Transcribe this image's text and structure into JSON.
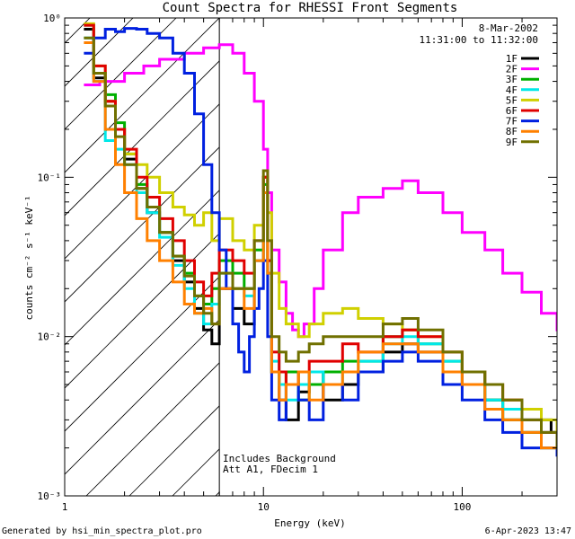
{
  "chart_data": {
    "type": "line",
    "title": "Count Spectra for RHESSI Front Segments",
    "xlabel": "Energy (keV)",
    "ylabel": "counts cm⁻² s⁻¹ keV⁻¹",
    "xscale": "log",
    "yscale": "log",
    "xlim": [
      1,
      300
    ],
    "ylim": [
      0.001,
      1
    ],
    "x_ticks": [
      {
        "value": 1,
        "label": "1"
      },
      {
        "value": 10,
        "label": "10"
      },
      {
        "value": 100,
        "label": "100"
      }
    ],
    "y_ticks": [
      {
        "value": 1,
        "label": "10⁰"
      },
      {
        "value": 0.1,
        "label": "10⁻¹"
      },
      {
        "value": 0.01,
        "label": "10⁻²"
      },
      {
        "value": 0.001,
        "label": "10⁻³"
      }
    ],
    "date": "8-Mar-2002",
    "time_range": "11:31:00 to 11:32:00",
    "annotation_lines": [
      "Includes Background",
      "Att A1, FDecim 1"
    ],
    "hatched_region_max_energy_keV": 6,
    "series": [
      {
        "name": "1F",
        "color": "#000000",
        "x": [
          1.25,
          1.4,
          1.6,
          1.8,
          2.0,
          2.3,
          2.6,
          3.0,
          3.5,
          4.0,
          4.5,
          5.0,
          5.5,
          6.0,
          7,
          8,
          9,
          10,
          10.5,
          11,
          12,
          13,
          15,
          17,
          20,
          25,
          30,
          40,
          50,
          60,
          80,
          100,
          130,
          160,
          200,
          250,
          280,
          300
        ],
        "y": [
          0.85,
          0.42,
          0.3,
          0.2,
          0.13,
          0.085,
          0.06,
          0.045,
          0.03,
          0.022,
          0.015,
          0.011,
          0.009,
          0.02,
          0.015,
          0.012,
          0.03,
          0.1,
          0.03,
          0.006,
          0.004,
          0.003,
          0.0045,
          0.006,
          0.004,
          0.005,
          0.006,
          0.008,
          0.009,
          0.008,
          0.006,
          0.005,
          0.004,
          0.003,
          0.0025,
          0.003,
          0.0025,
          0.002
        ]
      },
      {
        "name": "2F",
        "color": "#ff00ff",
        "x": [
          1.25,
          1.5,
          2.0,
          2.5,
          3.0,
          4.0,
          5.0,
          6.0,
          7.0,
          8.0,
          9.0,
          10.0,
          10.5,
          11,
          12,
          13,
          14,
          15,
          16,
          18,
          20,
          25,
          30,
          40,
          50,
          60,
          80,
          100,
          130,
          160,
          200,
          250,
          300
        ],
        "y": [
          0.38,
          0.4,
          0.45,
          0.5,
          0.55,
          0.6,
          0.65,
          0.68,
          0.6,
          0.45,
          0.3,
          0.15,
          0.08,
          0.035,
          0.022,
          0.014,
          0.011,
          0.01,
          0.012,
          0.02,
          0.035,
          0.06,
          0.075,
          0.085,
          0.095,
          0.08,
          0.06,
          0.045,
          0.035,
          0.025,
          0.019,
          0.014,
          0.011
        ]
      },
      {
        "name": "3F",
        "color": "#00b000",
        "x": [
          1.25,
          1.4,
          1.6,
          1.8,
          2.0,
          2.3,
          2.6,
          3.0,
          3.5,
          4.0,
          4.5,
          5.0,
          5.5,
          6.0,
          7,
          8,
          9,
          10,
          10.5,
          11,
          12,
          13,
          15,
          17,
          20,
          25,
          30,
          40,
          50,
          60,
          80,
          100,
          130,
          160,
          200,
          250,
          300
        ],
        "y": [
          0.9,
          0.45,
          0.33,
          0.22,
          0.14,
          0.09,
          0.065,
          0.045,
          0.032,
          0.025,
          0.018,
          0.016,
          0.02,
          0.03,
          0.025,
          0.02,
          0.035,
          0.09,
          0.025,
          0.006,
          0.005,
          0.006,
          0.004,
          0.005,
          0.006,
          0.007,
          0.007,
          0.01,
          0.011,
          0.009,
          0.007,
          0.006,
          0.004,
          0.003,
          0.0025,
          0.002,
          0.002
        ]
      },
      {
        "name": "4F",
        "color": "#00e8e8",
        "x": [
          1.25,
          1.4,
          1.6,
          1.8,
          2.0,
          2.3,
          2.6,
          3.0,
          3.5,
          4.0,
          4.5,
          5.0,
          5.5,
          6.0,
          7,
          8,
          9,
          10,
          10.5,
          11,
          12,
          13,
          15,
          17,
          20,
          25,
          30,
          40,
          50,
          60,
          80,
          100,
          130,
          160,
          200,
          250,
          300
        ],
        "y": [
          0.75,
          0.4,
          0.17,
          0.15,
          0.12,
          0.08,
          0.06,
          0.042,
          0.028,
          0.02,
          0.014,
          0.012,
          0.016,
          0.025,
          0.02,
          0.018,
          0.03,
          0.08,
          0.025,
          0.007,
          0.005,
          0.004,
          0.005,
          0.006,
          0.005,
          0.006,
          0.007,
          0.009,
          0.01,
          0.009,
          0.007,
          0.006,
          0.004,
          0.0035,
          0.003,
          0.0025,
          0.002
        ]
      },
      {
        "name": "5F",
        "color": "#d0d000",
        "x": [
          1.25,
          1.4,
          1.6,
          1.8,
          2.0,
          2.3,
          2.6,
          3.0,
          3.5,
          4.0,
          4.5,
          5.0,
          5.5,
          6.0,
          7,
          8,
          9,
          10,
          10.5,
          11,
          12,
          13,
          15,
          17,
          20,
          25,
          30,
          40,
          50,
          60,
          80,
          100,
          130,
          160,
          200,
          250,
          300
        ],
        "y": [
          0.92,
          0.5,
          0.3,
          0.2,
          0.14,
          0.12,
          0.1,
          0.08,
          0.065,
          0.058,
          0.05,
          0.06,
          0.04,
          0.055,
          0.04,
          0.035,
          0.05,
          0.1,
          0.06,
          0.025,
          0.015,
          0.012,
          0.01,
          0.012,
          0.014,
          0.015,
          0.013,
          0.012,
          0.011,
          0.01,
          0.008,
          0.006,
          0.005,
          0.004,
          0.0035,
          0.003,
          0.0025
        ]
      },
      {
        "name": "6F",
        "color": "#e00000",
        "x": [
          1.25,
          1.4,
          1.6,
          1.8,
          2.0,
          2.3,
          2.6,
          3.0,
          3.5,
          4.0,
          4.5,
          5.0,
          5.5,
          6.0,
          7,
          8,
          9,
          10,
          10.5,
          11,
          12,
          13,
          15,
          17,
          20,
          25,
          30,
          40,
          50,
          60,
          80,
          100,
          130,
          160,
          200,
          250,
          300
        ],
        "y": [
          0.9,
          0.5,
          0.3,
          0.2,
          0.15,
          0.1,
          0.075,
          0.055,
          0.04,
          0.03,
          0.022,
          0.018,
          0.025,
          0.035,
          0.03,
          0.025,
          0.04,
          0.1,
          0.03,
          0.008,
          0.006,
          0.005,
          0.006,
          0.007,
          0.007,
          0.009,
          0.008,
          0.01,
          0.011,
          0.01,
          0.008,
          0.006,
          0.005,
          0.004,
          0.003,
          0.0025,
          0.002
        ]
      },
      {
        "name": "7F",
        "color": "#0020e0",
        "x": [
          1.25,
          1.4,
          1.6,
          1.8,
          2.0,
          2.3,
          2.6,
          3.0,
          3.5,
          4.0,
          4.5,
          5.0,
          5.5,
          6.0,
          6.5,
          7,
          7.5,
          8,
          8.5,
          9,
          9.5,
          10,
          10.5,
          11,
          12,
          13,
          15,
          17,
          20,
          25,
          30,
          40,
          50,
          60,
          80,
          100,
          130,
          160,
          200,
          250,
          300
        ],
        "y": [
          0.6,
          0.75,
          0.85,
          0.82,
          0.86,
          0.85,
          0.8,
          0.75,
          0.6,
          0.45,
          0.25,
          0.12,
          0.06,
          0.035,
          0.02,
          0.012,
          0.008,
          0.006,
          0.01,
          0.015,
          0.02,
          0.03,
          0.01,
          0.004,
          0.003,
          0.005,
          0.004,
          0.003,
          0.005,
          0.004,
          0.006,
          0.007,
          0.008,
          0.007,
          0.005,
          0.004,
          0.003,
          0.0025,
          0.002,
          0.002,
          0.0018
        ]
      },
      {
        "name": "8F",
        "color": "#ff8000",
        "x": [
          1.25,
          1.4,
          1.6,
          1.8,
          2.0,
          2.3,
          2.6,
          3.0,
          3.5,
          4.0,
          4.5,
          5.0,
          5.5,
          6.0,
          7,
          8,
          9,
          10,
          10.5,
          11,
          12,
          13,
          15,
          17,
          20,
          25,
          30,
          40,
          50,
          60,
          80,
          100,
          130,
          160,
          200,
          250,
          300
        ],
        "y": [
          0.7,
          0.4,
          0.2,
          0.12,
          0.08,
          0.055,
          0.04,
          0.03,
          0.022,
          0.016,
          0.014,
          0.015,
          0.012,
          0.02,
          0.02,
          0.015,
          0.03,
          0.08,
          0.025,
          0.006,
          0.004,
          0.005,
          0.006,
          0.004,
          0.005,
          0.006,
          0.008,
          0.009,
          0.009,
          0.008,
          0.006,
          0.005,
          0.0035,
          0.003,
          0.0025,
          0.002,
          0.002
        ]
      },
      {
        "name": "9F",
        "color": "#707000",
        "x": [
          1.25,
          1.4,
          1.6,
          1.8,
          2.0,
          2.3,
          2.6,
          3.0,
          3.5,
          4.0,
          4.5,
          5.0,
          5.5,
          6.0,
          7,
          8,
          9,
          10,
          10.5,
          11,
          12,
          13,
          15,
          17,
          20,
          25,
          30,
          40,
          50,
          60,
          80,
          100,
          130,
          160,
          200,
          250,
          300
        ],
        "y": [
          0.75,
          0.45,
          0.28,
          0.18,
          0.12,
          0.085,
          0.065,
          0.045,
          0.032,
          0.024,
          0.018,
          0.014,
          0.012,
          0.025,
          0.02,
          0.02,
          0.04,
          0.11,
          0.04,
          0.01,
          0.008,
          0.007,
          0.008,
          0.009,
          0.01,
          0.01,
          0.01,
          0.012,
          0.013,
          0.011,
          0.008,
          0.006,
          0.005,
          0.004,
          0.003,
          0.0025,
          0.002
        ]
      }
    ]
  },
  "footer": {
    "generated_by": "Generated by hsi_min_spectra_plot.pro",
    "timestamp": "6-Apr-2023 13:47"
  }
}
